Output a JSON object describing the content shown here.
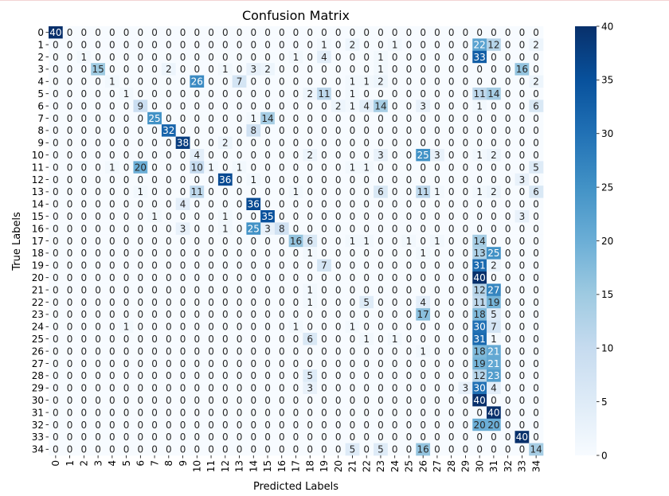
{
  "chart_data": {
    "type": "heatmap",
    "title": "Confusion Matrix",
    "xlabel": "Predicted Labels",
    "ylabel": "True Labels",
    "x_tick_labels": [
      "0",
      "1",
      "2",
      "3",
      "4",
      "5",
      "6",
      "7",
      "8",
      "9",
      "10",
      "11",
      "12",
      "13",
      "14",
      "15",
      "16",
      "17",
      "18",
      "19",
      "20",
      "21",
      "22",
      "23",
      "24",
      "25",
      "26",
      "27",
      "28",
      "29",
      "30",
      "31",
      "32",
      "33",
      "34"
    ],
    "y_tick_labels": [
      "0",
      "1",
      "2",
      "3",
      "4",
      "5",
      "6",
      "7",
      "8",
      "9",
      "10",
      "11",
      "12",
      "13",
      "14",
      "15",
      "16",
      "17",
      "18",
      "19",
      "20",
      "21",
      "22",
      "23",
      "24",
      "25",
      "26",
      "27",
      "28",
      "29",
      "30",
      "31",
      "32",
      "33",
      "34"
    ],
    "colormap": "Blues",
    "vmin": 0,
    "vmax": 40,
    "colorbar_ticks": [
      "0",
      "5",
      "10",
      "15",
      "20",
      "25",
      "30",
      "35",
      "40"
    ],
    "annotated": true,
    "matrix": [
      [
        40,
        0,
        0,
        0,
        0,
        0,
        0,
        0,
        0,
        0,
        0,
        0,
        0,
        0,
        0,
        0,
        0,
        0,
        0,
        0,
        0,
        0,
        0,
        0,
        0,
        0,
        0,
        0,
        0,
        0,
        0,
        0,
        0,
        0,
        0
      ],
      [
        0,
        0,
        0,
        0,
        0,
        0,
        0,
        0,
        0,
        0,
        0,
        0,
        0,
        0,
        0,
        0,
        0,
        0,
        0,
        1,
        0,
        2,
        0,
        0,
        1,
        0,
        0,
        0,
        0,
        0,
        22,
        12,
        0,
        0,
        2
      ],
      [
        0,
        0,
        1,
        0,
        0,
        0,
        0,
        0,
        0,
        0,
        0,
        0,
        0,
        0,
        0,
        0,
        0,
        1,
        0,
        4,
        0,
        0,
        0,
        1,
        0,
        0,
        0,
        0,
        0,
        0,
        33,
        0,
        0,
        0,
        0
      ],
      [
        0,
        0,
        0,
        15,
        0,
        0,
        0,
        0,
        2,
        0,
        0,
        0,
        1,
        0,
        3,
        2,
        0,
        0,
        0,
        0,
        0,
        0,
        0,
        1,
        0,
        0,
        0,
        0,
        0,
        0,
        0,
        0,
        0,
        16,
        0
      ],
      [
        0,
        0,
        0,
        0,
        1,
        0,
        0,
        0,
        0,
        0,
        26,
        0,
        0,
        7,
        0,
        0,
        0,
        0,
        0,
        0,
        0,
        1,
        1,
        2,
        0,
        0,
        0,
        0,
        0,
        0,
        0,
        0,
        0,
        0,
        2
      ],
      [
        0,
        0,
        0,
        0,
        0,
        1,
        0,
        0,
        0,
        0,
        0,
        0,
        0,
        0,
        0,
        0,
        0,
        0,
        2,
        11,
        0,
        1,
        0,
        0,
        0,
        0,
        0,
        0,
        0,
        0,
        11,
        14,
        0,
        0,
        0
      ],
      [
        0,
        0,
        0,
        0,
        0,
        0,
        9,
        0,
        0,
        0,
        0,
        0,
        0,
        0,
        0,
        0,
        0,
        0,
        0,
        0,
        2,
        1,
        4,
        14,
        0,
        0,
        3,
        0,
        0,
        0,
        1,
        0,
        0,
        0,
        6
      ],
      [
        0,
        0,
        0,
        0,
        0,
        0,
        0,
        25,
        0,
        0,
        0,
        0,
        0,
        0,
        1,
        14,
        0,
        0,
        0,
        0,
        0,
        0,
        0,
        0,
        0,
        0,
        0,
        0,
        0,
        0,
        0,
        0,
        0,
        0,
        0
      ],
      [
        0,
        0,
        0,
        0,
        0,
        0,
        0,
        0,
        32,
        0,
        0,
        0,
        0,
        0,
        8,
        0,
        0,
        0,
        0,
        0,
        0,
        0,
        0,
        0,
        0,
        0,
        0,
        0,
        0,
        0,
        0,
        0,
        0,
        0,
        0
      ],
      [
        0,
        0,
        0,
        0,
        0,
        0,
        0,
        0,
        0,
        38,
        0,
        0,
        2,
        0,
        0,
        0,
        0,
        0,
        0,
        0,
        0,
        0,
        0,
        0,
        0,
        0,
        0,
        0,
        0,
        0,
        0,
        0,
        0,
        0,
        0
      ],
      [
        0,
        0,
        0,
        0,
        0,
        0,
        0,
        0,
        0,
        0,
        4,
        0,
        0,
        0,
        0,
        0,
        0,
        0,
        2,
        0,
        0,
        0,
        0,
        3,
        0,
        0,
        25,
        3,
        0,
        0,
        1,
        2,
        0,
        0,
        0
      ],
      [
        0,
        0,
        0,
        0,
        1,
        0,
        20,
        0,
        0,
        0,
        10,
        1,
        0,
        1,
        0,
        0,
        0,
        0,
        0,
        0,
        0,
        1,
        1,
        0,
        0,
        0,
        0,
        0,
        0,
        0,
        0,
        0,
        0,
        0,
        5
      ],
      [
        0,
        0,
        0,
        0,
        0,
        0,
        0,
        0,
        0,
        0,
        0,
        0,
        36,
        0,
        1,
        0,
        0,
        0,
        0,
        0,
        0,
        0,
        0,
        0,
        0,
        0,
        0,
        0,
        0,
        0,
        0,
        0,
        0,
        3,
        0
      ],
      [
        0,
        0,
        0,
        0,
        0,
        0,
        1,
        0,
        0,
        0,
        11,
        0,
        0,
        0,
        0,
        0,
        0,
        1,
        0,
        0,
        0,
        0,
        0,
        6,
        0,
        0,
        11,
        1,
        0,
        0,
        1,
        2,
        0,
        0,
        6
      ],
      [
        0,
        0,
        0,
        0,
        0,
        0,
        0,
        0,
        0,
        4,
        0,
        0,
        0,
        0,
        36,
        0,
        0,
        0,
        0,
        0,
        0,
        0,
        0,
        0,
        0,
        0,
        0,
        0,
        0,
        0,
        0,
        0,
        0,
        0,
        0
      ],
      [
        0,
        0,
        0,
        0,
        0,
        0,
        0,
        1,
        0,
        0,
        0,
        0,
        1,
        0,
        0,
        35,
        0,
        0,
        0,
        0,
        0,
        0,
        0,
        0,
        0,
        0,
        0,
        0,
        0,
        0,
        0,
        0,
        0,
        3,
        0
      ],
      [
        0,
        0,
        0,
        0,
        0,
        0,
        0,
        0,
        0,
        3,
        0,
        0,
        1,
        0,
        25,
        3,
        8,
        0,
        0,
        0,
        0,
        0,
        0,
        0,
        0,
        0,
        0,
        0,
        0,
        0,
        0,
        0,
        0,
        0,
        0
      ],
      [
        0,
        0,
        0,
        0,
        0,
        0,
        0,
        0,
        0,
        0,
        0,
        0,
        0,
        0,
        0,
        0,
        0,
        16,
        6,
        0,
        0,
        1,
        1,
        0,
        0,
        1,
        0,
        1,
        0,
        0,
        14,
        0,
        0,
        0,
        0
      ],
      [
        0,
        0,
        0,
        0,
        0,
        0,
        0,
        0,
        0,
        0,
        0,
        0,
        0,
        0,
        0,
        0,
        0,
        0,
        1,
        0,
        0,
        0,
        0,
        0,
        0,
        0,
        1,
        0,
        0,
        0,
        13,
        25,
        0,
        0,
        0
      ],
      [
        0,
        0,
        0,
        0,
        0,
        0,
        0,
        0,
        0,
        0,
        0,
        0,
        0,
        0,
        0,
        0,
        0,
        0,
        0,
        7,
        0,
        0,
        0,
        0,
        0,
        0,
        0,
        0,
        0,
        0,
        31,
        2,
        0,
        0,
        0
      ],
      [
        0,
        0,
        0,
        0,
        0,
        0,
        0,
        0,
        0,
        0,
        0,
        0,
        0,
        0,
        0,
        0,
        0,
        0,
        0,
        0,
        0,
        0,
        0,
        0,
        0,
        0,
        0,
        0,
        0,
        0,
        40,
        0,
        0,
        0,
        0
      ],
      [
        0,
        0,
        0,
        0,
        0,
        0,
        0,
        0,
        0,
        0,
        0,
        0,
        0,
        0,
        0,
        0,
        0,
        0,
        1,
        0,
        0,
        0,
        0,
        0,
        0,
        0,
        0,
        0,
        0,
        0,
        12,
        27,
        0,
        0,
        0
      ],
      [
        0,
        0,
        0,
        0,
        0,
        0,
        0,
        0,
        0,
        0,
        0,
        0,
        0,
        0,
        0,
        0,
        0,
        0,
        1,
        0,
        0,
        0,
        5,
        0,
        0,
        0,
        4,
        0,
        0,
        0,
        11,
        19,
        0,
        0,
        0
      ],
      [
        0,
        0,
        0,
        0,
        0,
        0,
        0,
        0,
        0,
        0,
        0,
        0,
        0,
        0,
        0,
        0,
        0,
        0,
        0,
        0,
        0,
        0,
        0,
        0,
        0,
        0,
        17,
        0,
        0,
        0,
        18,
        5,
        0,
        0,
        0
      ],
      [
        0,
        0,
        0,
        0,
        0,
        1,
        0,
        0,
        0,
        0,
        0,
        0,
        0,
        0,
        0,
        0,
        0,
        1,
        0,
        0,
        0,
        1,
        0,
        0,
        0,
        0,
        0,
        0,
        0,
        0,
        30,
        7,
        0,
        0,
        0
      ],
      [
        0,
        0,
        0,
        0,
        0,
        0,
        0,
        0,
        0,
        0,
        0,
        0,
        0,
        0,
        0,
        0,
        0,
        0,
        6,
        0,
        0,
        0,
        1,
        0,
        1,
        0,
        0,
        0,
        0,
        0,
        31,
        1,
        0,
        0,
        0
      ],
      [
        0,
        0,
        0,
        0,
        0,
        0,
        0,
        0,
        0,
        0,
        0,
        0,
        0,
        0,
        0,
        0,
        0,
        0,
        0,
        0,
        0,
        0,
        0,
        0,
        0,
        0,
        1,
        0,
        0,
        0,
        18,
        21,
        0,
        0,
        0
      ],
      [
        0,
        0,
        0,
        0,
        0,
        0,
        0,
        0,
        0,
        0,
        0,
        0,
        0,
        0,
        0,
        0,
        0,
        0,
        0,
        0,
        0,
        0,
        0,
        0,
        0,
        0,
        0,
        0,
        0,
        0,
        19,
        21,
        0,
        0,
        0
      ],
      [
        0,
        0,
        0,
        0,
        0,
        0,
        0,
        0,
        0,
        0,
        0,
        0,
        0,
        0,
        0,
        0,
        0,
        0,
        5,
        0,
        0,
        0,
        0,
        0,
        0,
        0,
        0,
        0,
        0,
        0,
        12,
        23,
        0,
        0,
        0
      ],
      [
        0,
        0,
        0,
        0,
        0,
        0,
        0,
        0,
        0,
        0,
        0,
        0,
        0,
        0,
        0,
        0,
        0,
        0,
        3,
        0,
        0,
        0,
        0,
        0,
        0,
        0,
        0,
        0,
        0,
        3,
        30,
        4,
        0,
        0,
        0
      ],
      [
        0,
        0,
        0,
        0,
        0,
        0,
        0,
        0,
        0,
        0,
        0,
        0,
        0,
        0,
        0,
        0,
        0,
        0,
        0,
        0,
        0,
        0,
        0,
        0,
        0,
        0,
        0,
        0,
        0,
        0,
        40,
        0,
        0,
        0,
        0
      ],
      [
        0,
        0,
        0,
        0,
        0,
        0,
        0,
        0,
        0,
        0,
        0,
        0,
        0,
        0,
        0,
        0,
        0,
        0,
        0,
        0,
        0,
        0,
        0,
        0,
        0,
        0,
        0,
        0,
        0,
        0,
        0,
        40,
        0,
        0,
        0
      ],
      [
        0,
        0,
        0,
        0,
        0,
        0,
        0,
        0,
        0,
        0,
        0,
        0,
        0,
        0,
        0,
        0,
        0,
        0,
        0,
        0,
        0,
        0,
        0,
        0,
        0,
        0,
        0,
        0,
        0,
        0,
        20,
        20,
        0,
        0,
        0
      ],
      [
        0,
        0,
        0,
        0,
        0,
        0,
        0,
        0,
        0,
        0,
        0,
        0,
        0,
        0,
        0,
        0,
        0,
        0,
        0,
        0,
        0,
        0,
        0,
        0,
        0,
        0,
        0,
        0,
        0,
        0,
        0,
        0,
        0,
        40,
        0
      ],
      [
        0,
        0,
        0,
        0,
        0,
        0,
        0,
        0,
        0,
        0,
        0,
        0,
        0,
        0,
        0,
        0,
        0,
        0,
        0,
        0,
        0,
        5,
        0,
        5,
        0,
        0,
        16,
        0,
        0,
        0,
        0,
        0,
        0,
        0,
        14
      ]
    ]
  }
}
